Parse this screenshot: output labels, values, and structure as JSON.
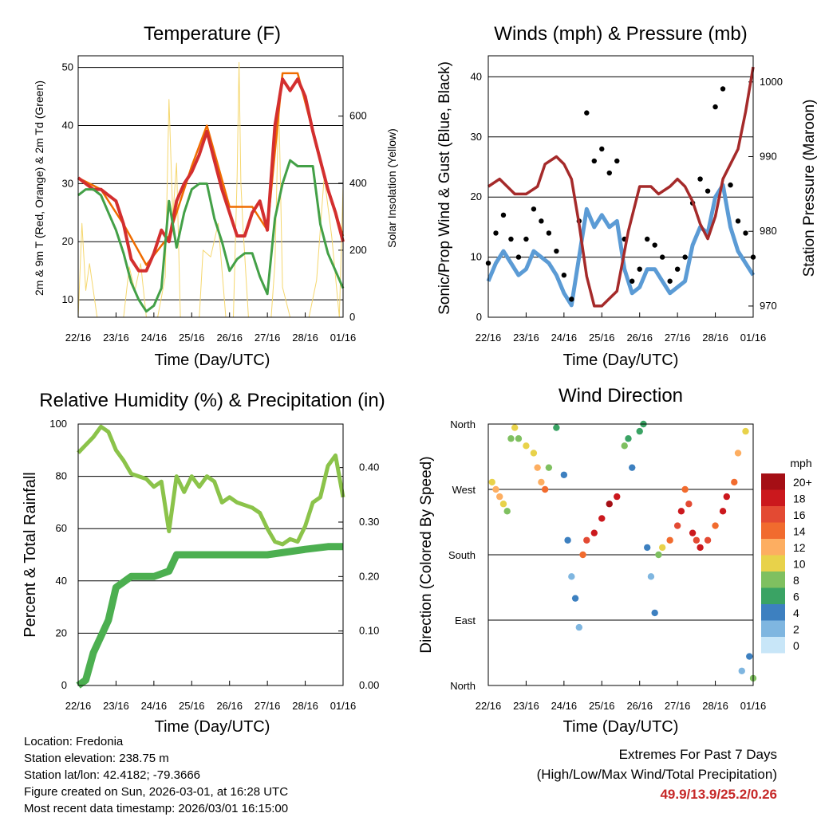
{
  "colors": {
    "temp_2m": "#d32f2f",
    "temp_9m": "#ef6c00",
    "dewpoint": "#43a047",
    "solar": "#f5d76e",
    "gust": "#000000",
    "wind": "#5b9bd5",
    "pressure": "#a52a2a",
    "rh": "#8bc34a",
    "precip": "#4caf50",
    "extremes": "#c62828"
  },
  "chart_data": [
    {
      "id": "temperature",
      "type": "line",
      "title": "Temperature (F)",
      "xlabel": "Time (Day/UTC)",
      "ylabel": "2m & 9m T (Red, Orange) & 2m Td (Green)",
      "y2label": "Solar Insolation (Yellow)",
      "xlim": [
        0,
        7
      ],
      "ylim": [
        7,
        52
      ],
      "y2lim": [
        0,
        780
      ],
      "xticks": [
        "22/16",
        "23/16",
        "24/16",
        "25/16",
        "26/16",
        "27/16",
        "28/16",
        "01/16"
      ],
      "yticks": [
        10,
        20,
        30,
        40,
        50
      ],
      "y2ticks": [
        0,
        200,
        400,
        600
      ],
      "series": [
        {
          "name": "2m T",
          "axis": "left",
          "x": [
            0,
            0.2,
            0.4,
            0.6,
            0.8,
            1.0,
            1.2,
            1.4,
            1.6,
            1.8,
            2.0,
            2.2,
            2.4,
            2.6,
            2.8,
            3.0,
            3.2,
            3.4,
            3.6,
            3.8,
            4.0,
            4.2,
            4.4,
            4.6,
            4.8,
            5.0,
            5.2,
            5.4,
            5.6,
            5.8,
            6.0,
            6.2,
            6.4,
            6.6,
            6.8,
            7.0
          ],
          "y": [
            31,
            30,
            29,
            29,
            28,
            27,
            23,
            17,
            15,
            15,
            18,
            22,
            20,
            27,
            30,
            32,
            35,
            39,
            34,
            29,
            25,
            21,
            21,
            25,
            27,
            22,
            40,
            48,
            46,
            48,
            45,
            39,
            34,
            29,
            25,
            20
          ]
        },
        {
          "name": "9m T",
          "axis": "left",
          "x": [
            0,
            0.6,
            1.2,
            1.8,
            2.4,
            3.0,
            3.4,
            4.0,
            4.6,
            5.0,
            5.4,
            5.8,
            6.2,
            6.6,
            7.0
          ],
          "y": [
            31,
            29,
            23,
            16,
            21,
            33,
            40,
            26,
            26,
            22,
            49,
            49,
            39,
            29,
            21
          ]
        },
        {
          "name": "2m Td",
          "axis": "left",
          "x": [
            0,
            0.2,
            0.4,
            0.6,
            0.8,
            1.0,
            1.2,
            1.4,
            1.6,
            1.8,
            2.0,
            2.2,
            2.4,
            2.6,
            2.8,
            3.0,
            3.2,
            3.4,
            3.6,
            3.8,
            4.0,
            4.2,
            4.4,
            4.6,
            4.8,
            5.0,
            5.2,
            5.4,
            5.6,
            5.8,
            6.0,
            6.2,
            6.4,
            6.6,
            6.8,
            7.0
          ],
          "y": [
            28,
            29,
            29,
            28,
            25,
            22,
            18,
            13,
            10,
            8,
            9,
            12,
            27,
            19,
            25,
            29,
            30,
            30,
            24,
            20,
            15,
            17,
            18,
            18,
            14,
            11,
            24,
            30,
            34,
            33,
            33,
            33,
            23,
            18,
            15,
            12
          ]
        },
        {
          "name": "Solar Insolation",
          "axis": "right",
          "x": [
            0,
            0.1,
            0.2,
            0.3,
            0.5,
            0.9,
            1.2,
            1.35,
            1.5,
            1.65,
            1.8,
            2.1,
            2.3,
            2.4,
            2.5,
            2.6,
            2.7,
            2.9,
            3.2,
            3.3,
            3.5,
            3.7,
            3.9,
            4.1,
            4.2,
            4.25,
            4.3,
            4.35,
            4.5,
            4.8,
            5.1,
            5.2,
            5.3,
            5.4,
            5.6,
            5.9,
            6.1,
            6.3,
            6.5,
            6.7,
            6.9,
            7.0
          ],
          "y": [
            0,
            280,
            80,
            160,
            0,
            0,
            0,
            150,
            80,
            160,
            0,
            0,
            120,
            650,
            300,
            460,
            0,
            0,
            0,
            200,
            180,
            280,
            0,
            0,
            420,
            760,
            400,
            280,
            0,
            0,
            0,
            160,
            650,
            90,
            0,
            0,
            0,
            110,
            420,
            240,
            0,
            390
          ]
        }
      ]
    },
    {
      "id": "winds_pressure",
      "type": "line",
      "title": "Winds (mph) & Pressure (mb)",
      "xlabel": "Time (Day/UTC)",
      "ylabel": "Sonic/Prop Wind & Gust (Blue, Black)",
      "y2label": "Station Pressure (Maroon)",
      "xlim": [
        0,
        7
      ],
      "ylim": [
        0,
        43.5
      ],
      "y2lim": [
        968.5,
        1003.5
      ],
      "xticks": [
        "22/16",
        "23/16",
        "24/16",
        "25/16",
        "26/16",
        "27/16",
        "28/16",
        "01/16"
      ],
      "yticks": [
        0,
        10,
        20,
        30,
        40
      ],
      "y2ticks": [
        970,
        980,
        990,
        1000
      ],
      "series": [
        {
          "name": "Gust",
          "axis": "left",
          "style": "dots",
          "x": [
            0,
            0.2,
            0.4,
            0.6,
            0.8,
            1.0,
            1.2,
            1.4,
            1.6,
            1.8,
            2.0,
            2.2,
            2.4,
            2.6,
            2.8,
            3.0,
            3.2,
            3.4,
            3.6,
            3.8,
            4.0,
            4.2,
            4.4,
            4.6,
            4.8,
            5.0,
            5.2,
            5.4,
            5.6,
            5.8,
            6.0,
            6.2,
            6.4,
            6.6,
            6.8,
            7.0
          ],
          "y": [
            9,
            14,
            17,
            13,
            10,
            13,
            18,
            16,
            14,
            11,
            7,
            3,
            16,
            34,
            26,
            28,
            24,
            26,
            13,
            6,
            8,
            13,
            12,
            10,
            6,
            8,
            10,
            19,
            23,
            21,
            35,
            38,
            22,
            16,
            14,
            10
          ]
        },
        {
          "name": "Wind",
          "axis": "left",
          "style": "line",
          "x": [
            0,
            0.2,
            0.4,
            0.6,
            0.8,
            1.0,
            1.2,
            1.4,
            1.6,
            1.8,
            2.0,
            2.2,
            2.4,
            2.6,
            2.8,
            3.0,
            3.2,
            3.4,
            3.6,
            3.8,
            4.0,
            4.2,
            4.4,
            4.6,
            4.8,
            5.0,
            5.2,
            5.4,
            5.6,
            5.8,
            6.0,
            6.2,
            6.4,
            6.6,
            6.8,
            7.0
          ],
          "y": [
            6,
            9,
            11,
            9,
            7,
            8,
            11,
            10,
            9,
            7,
            4,
            2,
            10,
            18,
            15,
            17,
            15,
            16,
            8,
            4,
            5,
            8,
            8,
            6,
            4,
            5,
            6,
            12,
            15,
            14,
            20,
            22,
            15,
            11,
            9,
            7
          ]
        },
        {
          "name": "Station Pressure",
          "axis": "right",
          "style": "line",
          "x": [
            0,
            0.3,
            0.5,
            0.7,
            1.0,
            1.3,
            1.5,
            1.8,
            2.0,
            2.2,
            2.4,
            2.6,
            2.8,
            3.0,
            3.4,
            3.7,
            4.0,
            4.3,
            4.5,
            4.8,
            5.0,
            5.2,
            5.4,
            5.6,
            5.8,
            6.0,
            6.2,
            6.6,
            6.8,
            7.0
          ],
          "y": [
            986,
            987,
            986,
            985,
            985,
            986,
            989,
            990,
            989,
            987,
            981,
            974,
            970,
            970,
            972,
            980,
            986,
            986,
            985,
            986,
            987,
            986,
            984,
            981,
            979,
            982,
            987,
            991,
            996,
            1002
          ]
        }
      ]
    },
    {
      "id": "humidity_precip",
      "type": "line",
      "title": "Relative Humidity (%) & Precipitation (in)",
      "xlabel": "Time (Day/UTC)",
      "ylabel": "Percent & Total Rainfall",
      "xlim": [
        0,
        7
      ],
      "ylim": [
        0,
        100
      ],
      "y2lim": [
        0,
        0.48
      ],
      "xticks": [
        "22/16",
        "23/16",
        "24/16",
        "25/16",
        "26/16",
        "27/16",
        "28/16",
        "01/16"
      ],
      "yticks": [
        0,
        20,
        40,
        60,
        80,
        100
      ],
      "y2ticks": [
        "0.00",
        "0.10",
        "0.20",
        "0.30",
        "0.40"
      ],
      "series": [
        {
          "name": "Relative Humidity",
          "axis": "left",
          "x": [
            0,
            0.2,
            0.4,
            0.6,
            0.8,
            1.0,
            1.2,
            1.4,
            1.6,
            1.8,
            2.0,
            2.2,
            2.4,
            2.6,
            2.8,
            3.0,
            3.2,
            3.4,
            3.6,
            3.8,
            4.0,
            4.2,
            4.4,
            4.6,
            4.8,
            5.0,
            5.2,
            5.4,
            5.6,
            5.8,
            6.0,
            6.2,
            6.4,
            6.6,
            6.8,
            7.0
          ],
          "y": [
            89,
            92,
            95,
            99,
            97,
            90,
            86,
            81,
            80,
            79,
            76,
            78,
            59,
            80,
            74,
            80,
            76,
            80,
            78,
            70,
            72,
            70,
            69,
            68,
            66,
            60,
            55,
            54,
            56,
            55,
            61,
            70,
            72,
            84,
            88,
            72
          ]
        },
        {
          "name": "Total Rainfall",
          "axis": "right",
          "x": [
            0,
            0.2,
            0.4,
            0.6,
            0.8,
            1.0,
            1.2,
            1.4,
            1.6,
            2.0,
            2.4,
            2.6,
            2.8,
            3.0,
            4.0,
            5.0,
            6.0,
            6.6,
            7.0
          ],
          "y": [
            0,
            0.01,
            0.06,
            0.09,
            0.12,
            0.18,
            0.19,
            0.2,
            0.2,
            0.2,
            0.21,
            0.24,
            0.24,
            0.24,
            0.24,
            0.24,
            0.25,
            0.255,
            0.255
          ]
        }
      ]
    },
    {
      "id": "wind_direction",
      "type": "scatter",
      "title": "Wind Direction",
      "xlabel": "Time (Day/UTC)",
      "ylabel": "Direction (Colored By Speed)",
      "xlim": [
        0,
        7
      ],
      "ylim": [
        0,
        360
      ],
      "xticks": [
        "22/16",
        "23/16",
        "24/16",
        "25/16",
        "26/16",
        "27/16",
        "28/16",
        "01/16"
      ],
      "ytick_labels": [
        "North",
        "East",
        "South",
        "West",
        "North"
      ],
      "legend": {
        "title": "mph",
        "labels": [
          "20+",
          "18",
          "16",
          "14",
          "12",
          "10",
          "8",
          "6",
          "4",
          "2",
          "0"
        ],
        "colors": [
          "#a50f15",
          "#cb181d",
          "#e34a33",
          "#f16b2e",
          "#fdae61",
          "#e8d24a",
          "#7fc060",
          "#3aa364",
          "#3d80c0",
          "#7fb6e0",
          "#c8e6f8"
        ]
      },
      "points": [
        [
          0.1,
          280,
          10
        ],
        [
          0.2,
          270,
          12
        ],
        [
          0.3,
          260,
          11
        ],
        [
          0.4,
          250,
          9
        ],
        [
          0.5,
          240,
          8
        ],
        [
          0.6,
          340,
          8
        ],
        [
          0.7,
          355,
          9
        ],
        [
          0.8,
          340,
          7
        ],
        [
          1.0,
          330,
          10
        ],
        [
          1.2,
          320,
          9
        ],
        [
          1.3,
          300,
          11
        ],
        [
          1.4,
          280,
          12
        ],
        [
          1.5,
          270,
          14
        ],
        [
          1.6,
          300,
          8
        ],
        [
          1.8,
          355,
          6
        ],
        [
          2.0,
          290,
          3
        ],
        [
          2.1,
          200,
          3
        ],
        [
          2.2,
          150,
          2
        ],
        [
          2.3,
          120,
          3
        ],
        [
          2.4,
          80,
          2
        ],
        [
          2.5,
          180,
          14
        ],
        [
          2.6,
          200,
          16
        ],
        [
          2.8,
          210,
          18
        ],
        [
          3.0,
          230,
          17
        ],
        [
          3.2,
          250,
          20
        ],
        [
          3.4,
          260,
          18
        ],
        [
          3.6,
          330,
          8
        ],
        [
          3.7,
          340,
          6
        ],
        [
          3.8,
          300,
          4
        ],
        [
          4.0,
          350,
          6
        ],
        [
          4.1,
          360,
          5
        ],
        [
          4.2,
          190,
          3
        ],
        [
          4.3,
          150,
          2
        ],
        [
          4.4,
          100,
          3
        ],
        [
          4.5,
          180,
          8
        ],
        [
          4.6,
          190,
          10
        ],
        [
          4.8,
          200,
          14
        ],
        [
          5.0,
          220,
          16
        ],
        [
          5.1,
          240,
          17
        ],
        [
          5.2,
          270,
          14
        ],
        [
          5.3,
          250,
          16
        ],
        [
          5.4,
          210,
          18
        ],
        [
          5.5,
          200,
          16
        ],
        [
          5.6,
          190,
          18
        ],
        [
          5.8,
          200,
          16
        ],
        [
          6.0,
          220,
          14
        ],
        [
          6.2,
          240,
          17
        ],
        [
          6.3,
          260,
          18
        ],
        [
          6.5,
          280,
          14
        ],
        [
          6.6,
          320,
          11
        ],
        [
          6.8,
          350,
          10
        ],
        [
          7.0,
          10,
          8
        ],
        [
          6.9,
          40,
          4
        ],
        [
          6.7,
          20,
          2
        ]
      ]
    }
  ],
  "info": {
    "location": "Location: Fredonia",
    "elevation": "Station elevation: 238.75 m",
    "latlon": "Station lat/lon: 42.4182; -79.3666",
    "created": "Figure created on Sun, 2026-03-01, at 16:28 UTC",
    "recent": "Most recent data timestamp: 2026/03/01 16:15:00"
  },
  "extremes": {
    "title": "Extremes For Past 7 Days",
    "subtitle": "(High/Low/Max Wind/Total Precipitation)",
    "values": "49.9/13.9/25.2/0.26"
  }
}
